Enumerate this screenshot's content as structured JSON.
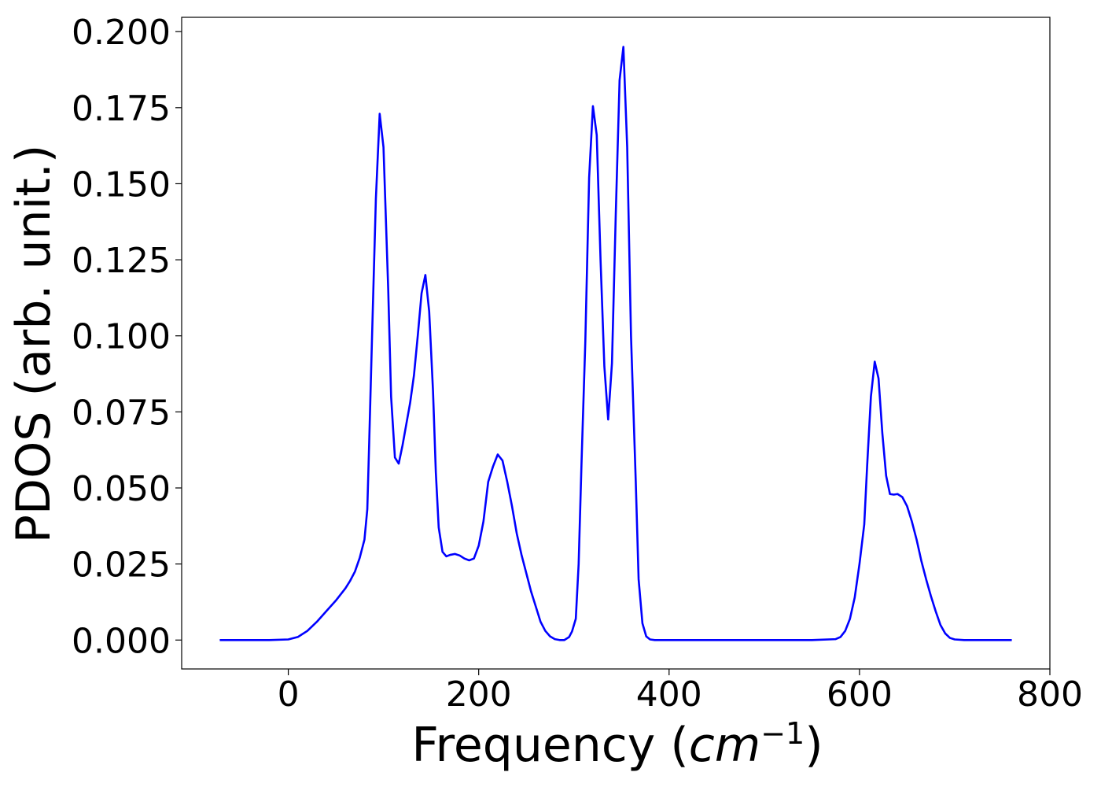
{
  "chart_data": {
    "type": "line",
    "title": "",
    "xlabel": "Frequency (cm⁻¹)",
    "xlabel_main": "Frequency (",
    "xlabel_unit": "cm",
    "xlabel_exp": "−1",
    "xlabel_close": ")",
    "ylabel": "PDOS (arb. unit.)",
    "xlim": [
      -112,
      800
    ],
    "ylim": [
      -0.0095,
      0.2047
    ],
    "xticks": [
      0,
      200,
      400,
      600,
      800
    ],
    "xtick_labels": [
      "0",
      "200",
      "400",
      "600",
      "800"
    ],
    "yticks": [
      0.0,
      0.025,
      0.05,
      0.075,
      0.1,
      0.125,
      0.15,
      0.175,
      0.2
    ],
    "ytick_labels": [
      "0.000",
      "0.025",
      "0.050",
      "0.075",
      "0.100",
      "0.125",
      "0.150",
      "0.175",
      "0.200"
    ],
    "grid": false,
    "legend": "none",
    "series": [
      {
        "color": "#0000ff",
        "x": [
          -72,
          -20,
          0,
          10,
          20,
          30,
          40,
          50,
          60,
          65,
          70,
          75,
          80,
          83,
          85,
          88,
          92,
          96,
          100,
          105,
          108,
          112,
          116,
          120,
          124,
          128,
          132,
          136,
          140,
          144,
          148,
          150,
          152,
          155,
          158,
          162,
          166,
          170,
          175,
          180,
          185,
          190,
          195,
          200,
          205,
          210,
          215,
          220,
          225,
          230,
          235,
          240,
          245,
          250,
          255,
          260,
          265,
          270,
          275,
          280,
          285,
          290,
          295,
          298,
          302,
          305,
          308,
          312,
          316,
          320,
          324,
          328,
          332,
          336,
          340,
          344,
          348,
          352,
          356,
          360,
          365,
          368,
          372,
          376,
          380,
          385,
          450,
          500,
          550,
          575,
          580,
          585,
          590,
          595,
          600,
          605,
          608,
          612,
          616,
          620,
          624,
          628,
          632,
          636,
          640,
          645,
          650,
          655,
          660,
          665,
          670,
          675,
          680,
          685,
          690,
          695,
          700,
          710,
          720,
          760
        ],
        "y": [
          0.0,
          0.0,
          0.0002,
          0.001,
          0.003,
          0.006,
          0.0095,
          0.013,
          0.017,
          0.0195,
          0.0225,
          0.027,
          0.033,
          0.043,
          0.065,
          0.1,
          0.145,
          0.173,
          0.162,
          0.115,
          0.08,
          0.06,
          0.058,
          0.064,
          0.071,
          0.078,
          0.087,
          0.1,
          0.114,
          0.12,
          0.108,
          0.095,
          0.082,
          0.055,
          0.037,
          0.029,
          0.0275,
          0.028,
          0.0283,
          0.0278,
          0.0268,
          0.0262,
          0.0268,
          0.031,
          0.039,
          0.052,
          0.057,
          0.061,
          0.059,
          0.052,
          0.044,
          0.035,
          0.028,
          0.022,
          0.016,
          0.011,
          0.006,
          0.003,
          0.0012,
          0.0003,
          0.0,
          0.0,
          0.001,
          0.0028,
          0.007,
          0.025,
          0.058,
          0.098,
          0.152,
          0.1755,
          0.166,
          0.125,
          0.09,
          0.0725,
          0.091,
          0.14,
          0.184,
          0.195,
          0.162,
          0.1,
          0.052,
          0.02,
          0.0055,
          0.0012,
          0.0002,
          0.0,
          0.0,
          0.0,
          0.0,
          0.0003,
          0.001,
          0.003,
          0.007,
          0.014,
          0.025,
          0.038,
          0.057,
          0.08,
          0.0915,
          0.086,
          0.068,
          0.054,
          0.048,
          0.0478,
          0.048,
          0.047,
          0.044,
          0.039,
          0.033,
          0.026,
          0.02,
          0.0145,
          0.0095,
          0.005,
          0.0022,
          0.0007,
          0.0002,
          0.0,
          0.0,
          0.0
        ]
      }
    ]
  }
}
